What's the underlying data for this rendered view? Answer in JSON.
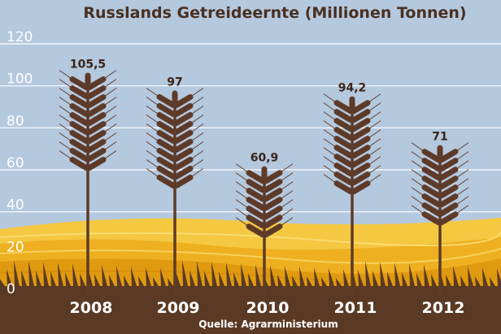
{
  "chart_data": {
    "type": "bar",
    "title": "Russlands Getreideernte (Millionen Tonnen)",
    "categories": [
      "2008",
      "2009",
      "2010",
      "2011",
      "2012"
    ],
    "values": [
      105.5,
      97,
      60.9,
      94.2,
      71
    ],
    "value_labels": [
      "105,5",
      "97",
      "60,9",
      "94,2",
      "71"
    ],
    "yticks": [
      "0",
      "20",
      "40",
      "60",
      "80",
      "100",
      "120"
    ],
    "ylim": [
      0,
      120
    ],
    "grid": true,
    "xlabel": "",
    "ylabel": "",
    "source": "Quelle: Agrarministerium"
  },
  "colors": {
    "sky": "#b4c8de",
    "grid": "#ffffff",
    "field_light": "#f5c842",
    "field_mid": "#eeb020",
    "field_dark": "#e09a10",
    "soil": "#5a3a24",
    "wheat": "#5e3a28",
    "title": "#4a3020"
  },
  "icons": {
    "bar_mark": "wheat-ear-icon"
  }
}
